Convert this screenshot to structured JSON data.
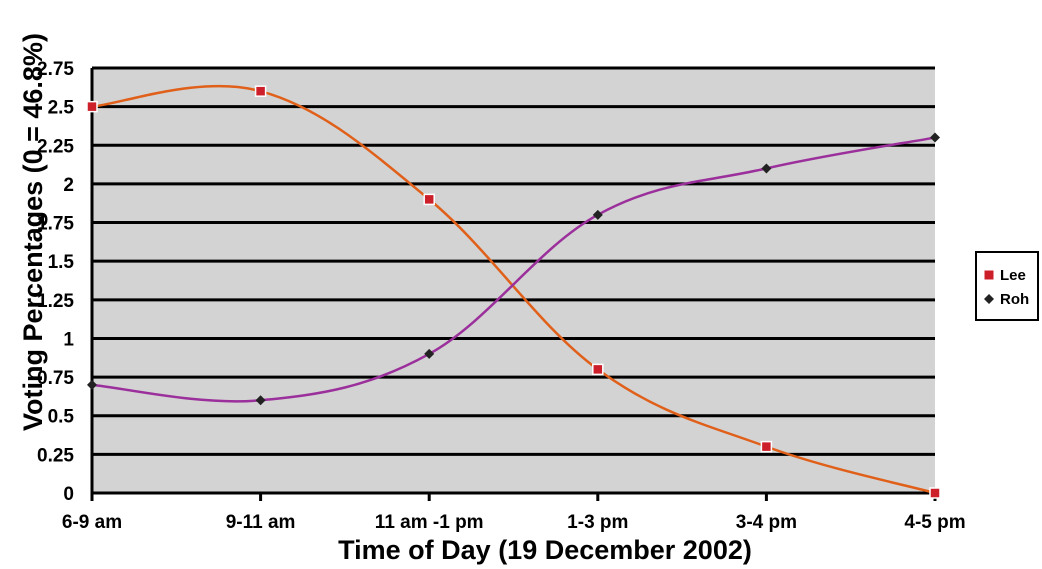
{
  "chart_data": {
    "type": "line",
    "title": "",
    "xlabel": "Time of Day (19 December 2002)",
    "ylabel": "Voting Percentages (0 = 46.8%)",
    "categories": [
      "6-9 am",
      "9-11 am",
      "11 am -1 pm",
      "1-3 pm",
      "3-4 pm",
      "4-5 pm"
    ],
    "y_ticks": [
      "0",
      "0.25",
      "0.5",
      "0.75",
      "1",
      "1.25",
      "1.5",
      "1.75",
      "2",
      "2.25",
      "2.5",
      "2.75"
    ],
    "ylim": [
      0,
      2.75
    ],
    "grid": true,
    "legend_position": "right",
    "series": [
      {
        "name": "Lee",
        "marker": "square",
        "color": "#e0601a",
        "marker_color": "#cc1f2a",
        "values": [
          2.5,
          2.6,
          1.9,
          0.8,
          0.3,
          0.0
        ]
      },
      {
        "name": "Roh",
        "marker": "diamond",
        "color": "#9b2f9b",
        "marker_color": "#222222",
        "values": [
          0.7,
          0.6,
          0.9,
          1.8,
          2.1,
          2.3
        ]
      }
    ]
  },
  "colors": {
    "plot_background": "#d3d3d3",
    "gridline": "#000000"
  }
}
